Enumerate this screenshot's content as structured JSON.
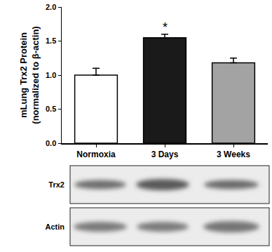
{
  "chart_data": {
    "type": "bar",
    "ylabel": "mLung Trx2 Protein\n(normalized to β-actin)",
    "categories": [
      "Normoxia",
      "3 Days",
      "3 Weeks"
    ],
    "values": [
      1.0,
      1.55,
      1.18
    ],
    "errors": [
      0.1,
      0.05,
      0.07
    ],
    "colors": [
      "#ffffff",
      "#1a1a1a",
      "#a3a3a3"
    ],
    "ylim": [
      0,
      2
    ],
    "yticks": [
      {
        "value": 0,
        "label": "0.0"
      },
      {
        "value": 0.5,
        "label": "0.5"
      },
      {
        "value": 1,
        "label": "1.0"
      },
      {
        "value": 1.5,
        "label": "1.5"
      },
      {
        "value": 2,
        "label": "2.0"
      }
    ],
    "grid": false,
    "annotations": [
      {
        "category": "3 Days",
        "text": "*"
      }
    ]
  },
  "blot_labels": [
    "Trx2",
    "Actin"
  ]
}
